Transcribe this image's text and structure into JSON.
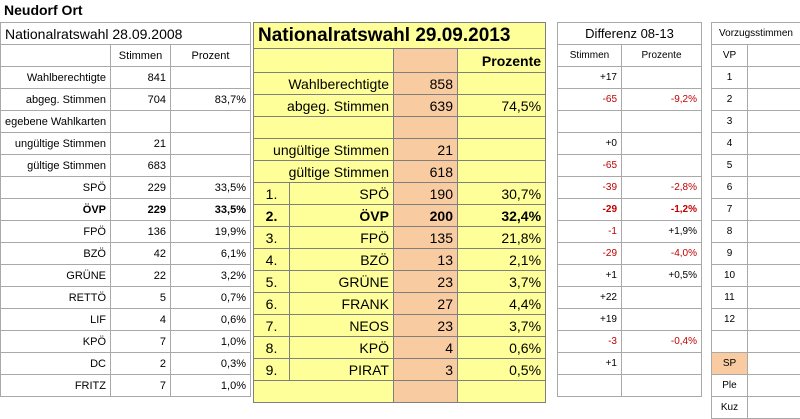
{
  "page_title": "Neudorf Ort",
  "left": {
    "title": "Nationalratswahl 28.09.2008",
    "col_stimmen": "Stimmen",
    "col_prozent": "Prozent",
    "rows": [
      {
        "label": "Wahlberechtigte",
        "stimmen": "841",
        "prozent": ""
      },
      {
        "label": "abgeg. Stimmen",
        "stimmen": "704",
        "prozent": "83,7%"
      },
      {
        "label": "egebene Wahlkarten",
        "stimmen": "",
        "prozent": ""
      },
      {
        "label": "ungültige Stimmen",
        "stimmen": "21",
        "prozent": ""
      },
      {
        "label": "gültige Stimmen",
        "stimmen": "683",
        "prozent": ""
      },
      {
        "label": "SPÖ",
        "stimmen": "229",
        "prozent": "33,5%"
      },
      {
        "label": "ÖVP",
        "stimmen": "229",
        "prozent": "33,5%"
      },
      {
        "label": "FPÖ",
        "stimmen": "136",
        "prozent": "19,9%"
      },
      {
        "label": "BZÖ",
        "stimmen": "42",
        "prozent": "6,1%"
      },
      {
        "label": "GRÜNE",
        "stimmen": "22",
        "prozent": "3,2%"
      },
      {
        "label": "RETTÖ",
        "stimmen": "5",
        "prozent": "0,7%"
      },
      {
        "label": "LIF",
        "stimmen": "4",
        "prozent": "0,6%"
      },
      {
        "label": "KPÖ",
        "stimmen": "7",
        "prozent": "1,0%"
      },
      {
        "label": "DC",
        "stimmen": "2",
        "prozent": "0,3%"
      },
      {
        "label": "FRITZ",
        "stimmen": "7",
        "prozent": "1,0%"
      }
    ]
  },
  "middle": {
    "title": "Nationalratswahl 29.09.2013",
    "col_prozente": "Prozente",
    "summary": [
      {
        "label": "Wahlberechtigte",
        "stimmen": "858",
        "prozent": ""
      },
      {
        "label": "abgeg. Stimmen",
        "stimmen": "639",
        "prozent": "74,5%"
      },
      {
        "label": "",
        "stimmen": "",
        "prozent": ""
      },
      {
        "label": "ungültige Stimmen",
        "stimmen": "21",
        "prozent": ""
      },
      {
        "label": "gültige Stimmen",
        "stimmen": "618",
        "prozent": ""
      }
    ],
    "parties": [
      {
        "nr": "1.",
        "name": "SPÖ",
        "stimmen": "190",
        "prozent": "30,7%"
      },
      {
        "nr": "2.",
        "name": "ÖVP",
        "stimmen": "200",
        "prozent": "32,4%"
      },
      {
        "nr": "3.",
        "name": "FPÖ",
        "stimmen": "135",
        "prozent": "21,8%"
      },
      {
        "nr": "4.",
        "name": "BZÖ",
        "stimmen": "13",
        "prozent": "2,1%"
      },
      {
        "nr": "5.",
        "name": "GRÜNE",
        "stimmen": "23",
        "prozent": "3,7%"
      },
      {
        "nr": "6.",
        "name": "FRANK",
        "stimmen": "27",
        "prozent": "4,4%"
      },
      {
        "nr": "7.",
        "name": "NEOS",
        "stimmen": "23",
        "prozent": "3,7%"
      },
      {
        "nr": "8.",
        "name": "KPÖ",
        "stimmen": "4",
        "prozent": "0,6%"
      },
      {
        "nr": "9.",
        "name": "PIRAT",
        "stimmen": "3",
        "prozent": "0,5%"
      }
    ]
  },
  "diff": {
    "title": "Differenz 08-13",
    "col_stimmen": "Stimmen",
    "col_prozente": "Prozente",
    "rows": [
      {
        "s": "+17",
        "p": "",
        "sred": false,
        "pred": false
      },
      {
        "s": "-65",
        "p": "-9,2%",
        "sred": true,
        "pred": true
      },
      {
        "s": "",
        "p": "",
        "sred": false,
        "pred": false
      },
      {
        "s": "+0",
        "p": "",
        "sred": false,
        "pred": false
      },
      {
        "s": "-65",
        "p": "",
        "sred": true,
        "pred": false
      },
      {
        "s": "-39",
        "p": "-2,8%",
        "sred": true,
        "pred": true
      },
      {
        "s": "-29",
        "p": "-1,2%",
        "sred": true,
        "pred": true
      },
      {
        "s": "-1",
        "p": "+1,9%",
        "sred": true,
        "pred": false
      },
      {
        "s": "-29",
        "p": "-4,0%",
        "sred": true,
        "pred": true
      },
      {
        "s": "+1",
        "p": "+0,5%",
        "sred": false,
        "pred": false
      },
      {
        "s": "+22",
        "p": "",
        "sred": false,
        "pred": false
      },
      {
        "s": "+19",
        "p": "",
        "sred": false,
        "pred": false
      },
      {
        "s": "-3",
        "p": "-0,4%",
        "sred": true,
        "pred": true
      },
      {
        "s": "+1",
        "p": "",
        "sred": false,
        "pred": false
      },
      {
        "s": "",
        "p": "",
        "sred": false,
        "pred": false
      }
    ]
  },
  "vp": {
    "title": "Vorzugsstimmen",
    "header": "VP",
    "rows": [
      "1",
      "2",
      "3",
      "4",
      "5",
      "6",
      "7",
      "8",
      "9",
      "10",
      "11",
      "12",
      "",
      "SP",
      "Ple",
      "Kuz"
    ]
  },
  "colors": {
    "yellow": "#ffff99",
    "orange": "#f8cba0",
    "red": "#c00000",
    "grid": "#a9a9a9"
  }
}
